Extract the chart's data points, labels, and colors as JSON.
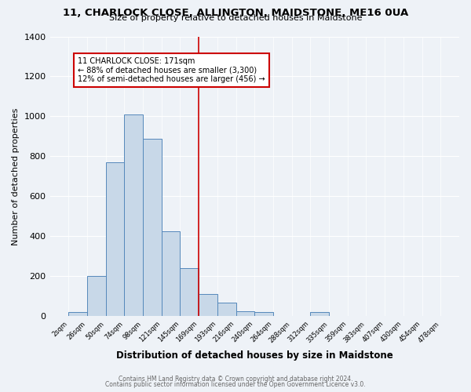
{
  "title_line1": "11, CHARLOCK CLOSE, ALLINGTON, MAIDSTONE, ME16 0UA",
  "title_line2": "Size of property relative to detached houses in Maidstone",
  "xlabel": "Distribution of detached houses by size in Maidstone",
  "ylabel": "Number of detached properties",
  "bin_labels": [
    "2sqm",
    "26sqm",
    "50sqm",
    "74sqm",
    "98sqm",
    "121sqm",
    "145sqm",
    "169sqm",
    "193sqm",
    "216sqm",
    "240sqm",
    "264sqm",
    "288sqm",
    "312sqm",
    "335sqm",
    "359sqm",
    "383sqm",
    "407sqm",
    "430sqm",
    "454sqm",
    "478sqm"
  ],
  "bar_values": [
    20,
    200,
    770,
    1010,
    890,
    425,
    240,
    110,
    70,
    25,
    20,
    0,
    0,
    20,
    0,
    0,
    0,
    0,
    0,
    0
  ],
  "bar_color": "#c8d8e8",
  "bar_edge_color": "#5588bb",
  "vline_index": 7,
  "vline_color": "#cc0000",
  "annotation_title": "11 CHARLOCK CLOSE: 171sqm",
  "annotation_line1": "← 88% of detached houses are smaller (3,300)",
  "annotation_line2": "12% of semi-detached houses are larger (456) →",
  "annotation_box_color": "#ffffff",
  "annotation_box_edge": "#cc0000",
  "ylim": [
    0,
    1400
  ],
  "yticks": [
    0,
    200,
    400,
    600,
    800,
    1000,
    1200,
    1400
  ],
  "footer_line1": "Contains HM Land Registry data © Crown copyright and database right 2024.",
  "footer_line2": "Contains public sector information licensed under the Open Government Licence v3.0.",
  "bg_color": "#eef2f7",
  "plot_bg_color": "#eef2f7",
  "grid_color": "#ffffff"
}
